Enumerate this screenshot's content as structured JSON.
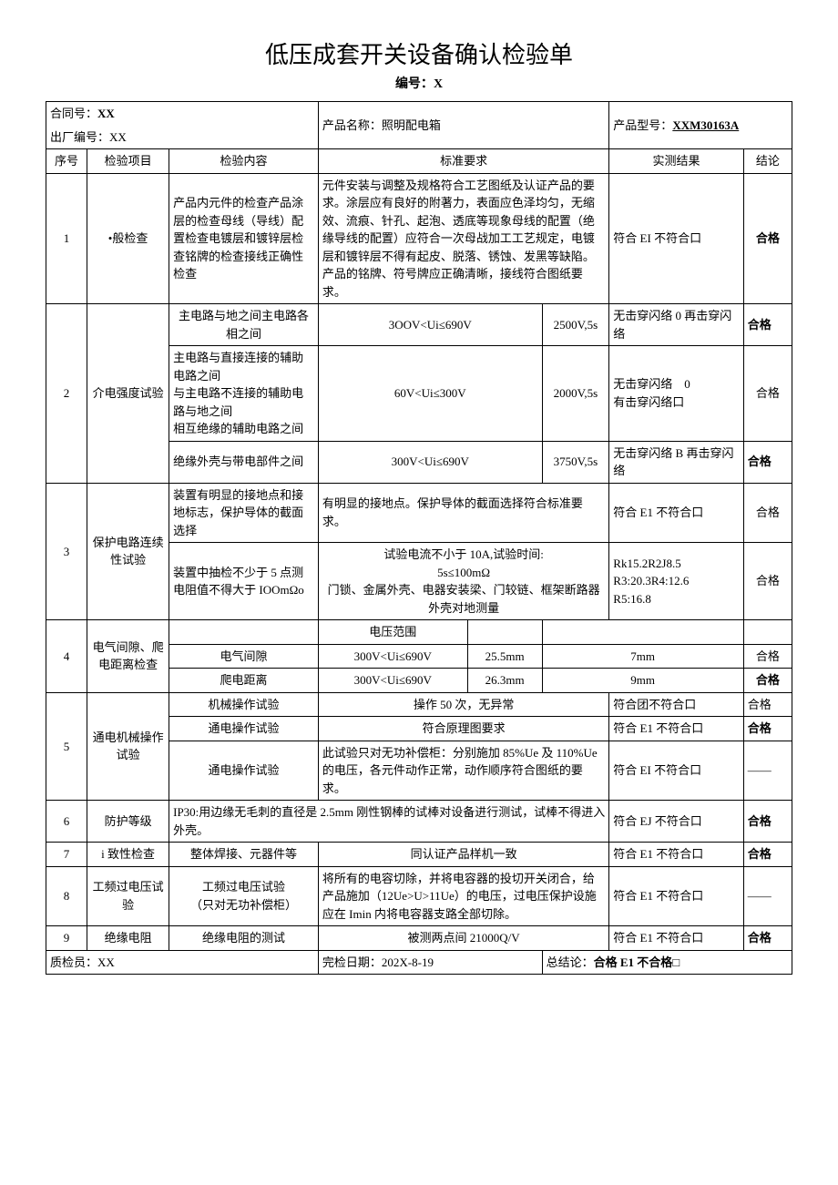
{
  "title": "低压成套开关设备确认检验单",
  "docnum_label": "编号：",
  "docnum_value": "X",
  "header": {
    "contract_label": "合同号：",
    "contract_value": "XX",
    "factory_label": "出厂编号：",
    "factory_value": "XX",
    "product_name_label": "产品名称：",
    "product_name_value": "照明配电箱",
    "product_model_label": "产品型号：",
    "product_model_value": "XXM30163A"
  },
  "columns": {
    "seq": "序号",
    "item": "检验项目",
    "content": "检验内容",
    "standard": "标准要求",
    "result": "实测结果",
    "conclusion": "结论"
  },
  "rows": {
    "r1": {
      "seq": "1",
      "item": "•般检查",
      "content": "产品内元件的检查产品涂层的检查母线（导线）配置检查电镀层和镀锌层检查铭牌的检查接线正确性检查",
      "standard": "元件安装与调整及规格符合工艺图纸及认证产品的要求。涂层应有良好的附著力，表面应色泽均匀，无缩效、流痕、针孔、起泡、透底等现象母线的配置（绝缘导线的配置）应符合一次母战加工工艺规定，电镀层和镀锌层不得有起皮、脱落、锈蚀、发黑等缺陷。产品的铭牌、符号牌应正确清晰，接线符合图纸要求。",
      "result": "符合 EI 不符合口",
      "conclusion": "合格"
    },
    "r2": {
      "seq": "2",
      "item": "介电强度试验",
      "a": {
        "content": "主电路与地之间主电路各相之间",
        "standard": "3OOV<Ui≤690V",
        "cond": "2500V,5s",
        "result": "无击穿闪络 0 再击穿闪络",
        "conclusion": "合格"
      },
      "b": {
        "content": "主电路与直接连接的辅助电路之间\n与主电路不连接的辅助电路与地之间\n相互绝缘的辅助电路之间",
        "standard": "60V<Ui≤300V",
        "cond": "2000V,5s",
        "result": "无击穿闪络　0\n有击穿闪络口",
        "conclusion": "合格"
      },
      "c": {
        "content": "绝缘外壳与带电部件之间",
        "standard": "300V<Ui≤690V",
        "cond": "3750V,5s",
        "result": "无击穿闪络 B 再击穿闪络",
        "conclusion": "合格"
      }
    },
    "r3": {
      "seq": "3",
      "item": "保护电路连续性试验",
      "a": {
        "content": "装置有明显的接地点和接地标志，保护导体的截面选择",
        "standard": "有明显的接地点。保护导体的截面选择符合标准要求。",
        "result": "符合 E1 不符合口",
        "conclusion": "合格"
      },
      "b": {
        "content": "装置中抽检不少于 5 点测电阻值不得大于 IOOmΩo",
        "standard": "试验电流不小于 10A,试验时间:\n5s≤100mΩ\n门锁、金属外壳、电器安装梁、门较链、框架断路器外壳对地测量",
        "result": "Rk15.2R2J8.5\nR3:20.3R4:12.6\nR5:16.8",
        "conclusion": "合格"
      }
    },
    "r4": {
      "seq": "4",
      "item": "电气间隙、爬电距离检查",
      "head": {
        "content": "",
        "standard": "电压范围",
        "v1": "",
        "v2": "",
        "conclusion": ""
      },
      "a": {
        "content": "电气间隙",
        "standard": "300V<Ui≤690V",
        "v1": "25.5mm",
        "v2": "7mm",
        "conclusion": "合格"
      },
      "b": {
        "content": "爬电距离",
        "standard": "300V<Ui≤690V",
        "v1": "26.3mm",
        "v2": "9mm",
        "conclusion": "合格"
      }
    },
    "r5": {
      "seq": "5",
      "item": "通电机械操作试验",
      "a": {
        "content": "机械操作试验",
        "standard": "操作 50 次，无异常",
        "result": "符合团不符合口",
        "conclusion": "合格"
      },
      "b": {
        "content": "通电操作试验",
        "standard": "符合原理图要求",
        "result": "符合 E1 不符合口",
        "conclusion": "合格"
      },
      "c": {
        "content": "通电操作试验",
        "standard": "此试验只对无功补偿柜：分别施加 85%Ue 及 110%Ue 的电压，各元件动作正常，动作顺序符合图纸的要求。",
        "result": "符合 EI 不符合口",
        "conclusion": "——"
      }
    },
    "r6": {
      "seq": "6",
      "item": "防护等级",
      "content": "IP30:用边缘无毛刺的直径是 2.5mm 刚性钢棒的试棒对设备进行测试，试棒不得进入外壳。",
      "result": "符合 EJ 不符合口",
      "conclusion": "合格"
    },
    "r7": {
      "seq": "7",
      "item": "i 致性检查",
      "content": "整体焊接、元器件等",
      "standard": "同认证产品样机一致",
      "result": "符合 E1 不符合口",
      "conclusion": "合格"
    },
    "r8": {
      "seq": "8",
      "item": "工频过电压试验",
      "content": "工频过电压试验\n（只对无功补偿柜）",
      "standard": "将所有的电容切除，并将电容器的投切开关闭合，给产品施加（12Ue>U>11Ue）的电压，过电压保护设施应在 Imin 内将电容器支路全部切除。",
      "result": "符合 E1 不符合口",
      "conclusion": "——"
    },
    "r9": {
      "seq": "9",
      "item": "绝缘电阻",
      "content": "绝缘电阻的测试",
      "standard": "被测两点间 21000Q/V",
      "result": "符合 E1 不符合口",
      "conclusion": "合格"
    }
  },
  "footer": {
    "inspector_label": "质检员：",
    "inspector_value": "XX",
    "date_label": "完检日期：",
    "date_value": "202X-8-19",
    "summary_label": "总结论：",
    "summary_value": "合格 E1 不合格□"
  }
}
